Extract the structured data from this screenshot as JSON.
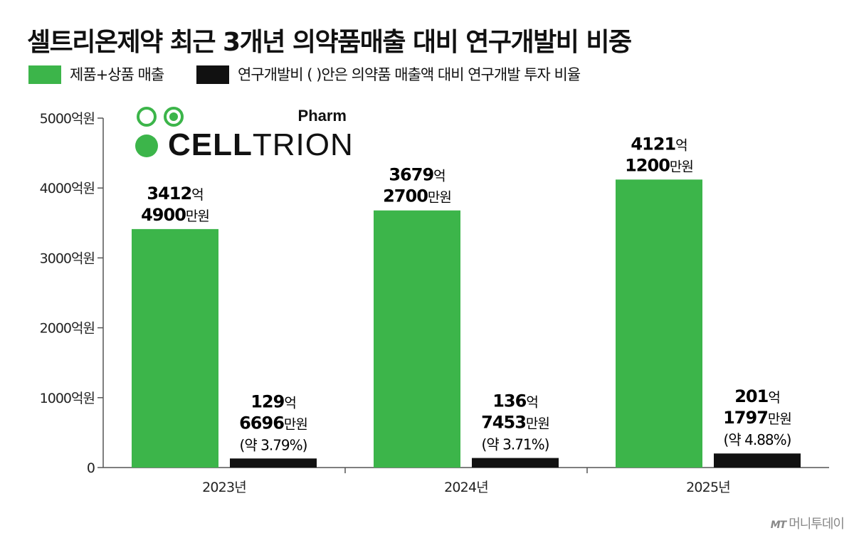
{
  "title": "셀트리온제약 최근 3개년 의약품매출 대비 연구개발비 비중",
  "legend": {
    "items": [
      {
        "label": "제품+상품 매출",
        "color": "#3cb54a"
      },
      {
        "label": "연구개발비 (  )안은 의약품 매출액 대비 연구개발 투자 비율",
        "color": "#111111"
      }
    ]
  },
  "logo": {
    "brand_bold": "CELL",
    "brand_light": "TRION",
    "sub": "Pharm"
  },
  "source": {
    "mark": "MT",
    "name": "머니투데이"
  },
  "chart_data": {
    "type": "bar",
    "categories": [
      "2023년",
      "2024년",
      "2025년"
    ],
    "ylim": [
      0,
      5000
    ],
    "yticks": [
      0,
      1000,
      2000,
      3000,
      4000,
      5000
    ],
    "ytick_labels": [
      "0",
      "1000억원",
      "2000억원",
      "3000억원",
      "4000억원",
      "5000억원"
    ],
    "unit": "억원",
    "grid": false,
    "series": [
      {
        "name": "제품+상품 매출",
        "color": "#3cb54a",
        "values": [
          3412.49,
          3679.27,
          4121.12
        ],
        "labels": [
          [
            {
              "big": "3412",
              "small": "억"
            },
            {
              "big": "4900",
              "small": "만원"
            }
          ],
          [
            {
              "big": "3679",
              "small": "억"
            },
            {
              "big": "2700",
              "small": "만원"
            }
          ],
          [
            {
              "big": "4121",
              "small": "억"
            },
            {
              "big": "1200",
              "small": "만원"
            }
          ]
        ]
      },
      {
        "name": "연구개발비",
        "color": "#111111",
        "values": [
          129.67,
          136.75,
          201.18
        ],
        "labels": [
          [
            {
              "big": "129",
              "small": "억"
            },
            {
              "big": "6696",
              "small": "만원"
            }
          ],
          [
            {
              "big": "136",
              "small": "억"
            },
            {
              "big": "7453",
              "small": "만원"
            }
          ],
          [
            {
              "big": "201",
              "small": "억"
            },
            {
              "big": "1797",
              "small": "만원"
            }
          ]
        ],
        "ratio_labels": [
          "(약 3.79%)",
          "(약 3.71%)",
          "(약 4.88%)"
        ]
      }
    ]
  }
}
